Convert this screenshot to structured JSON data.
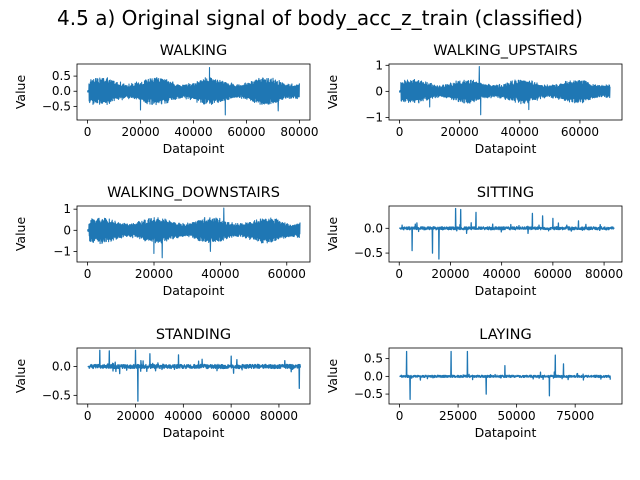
{
  "figure": {
    "title": "4.5 a) Original signal of body_acc_z_train (classified)"
  },
  "chart_data": [
    {
      "type": "line",
      "title": "WALKING",
      "xlabel": "Datapoint",
      "ylabel": "Value",
      "xlim": [
        -4000,
        84000
      ],
      "ylim": [
        -0.95,
        0.9
      ],
      "xticks": [
        0,
        20000,
        40000,
        60000,
        80000
      ],
      "yticks": [
        -0.5,
        0.0,
        0.5
      ],
      "yticklabels": [
        "−0.5",
        "0.0",
        "0.5"
      ],
      "n_points": 80000,
      "color": "#1f77b4",
      "series": [
        {
          "x_start": 0,
          "x_end": 80000,
          "typical_range": [
            -0.45,
            0.45
          ],
          "min": -0.78,
          "max": 0.78,
          "spikes": [
            [
              46000,
              0.78
            ],
            [
              52000,
              -0.78
            ],
            [
              20000,
              -0.62
            ],
            [
              72000,
              -0.65
            ]
          ]
        }
      ]
    },
    {
      "type": "line",
      "title": "WALKING_UPSTAIRS",
      "xlabel": "Datapoint",
      "ylabel": "Value",
      "xlim": [
        -3500,
        74000
      ],
      "ylim": [
        -1.1,
        1.05
      ],
      "xticks": [
        0,
        20000,
        40000,
        60000
      ],
      "yticks": [
        -1,
        0,
        1
      ],
      "yticklabels": [
        "−1",
        "0",
        "1"
      ],
      "n_points": 70000,
      "color": "#1f77b4",
      "series": [
        {
          "x_start": 0,
          "x_end": 70000,
          "typical_range": [
            -0.45,
            0.45
          ],
          "min": -0.95,
          "max": 0.95,
          "spikes": [
            [
              26500,
              0.95
            ],
            [
              27000,
              -0.9
            ],
            [
              43000,
              -0.7
            ],
            [
              10000,
              -0.6
            ]
          ]
        }
      ]
    },
    {
      "type": "line",
      "title": "WALKING_DOWNSTAIRS",
      "xlabel": "Datapoint",
      "ylabel": "Value",
      "xlim": [
        -3200,
        67000
      ],
      "ylim": [
        -1.5,
        1.15
      ],
      "xticks": [
        0,
        20000,
        40000,
        60000
      ],
      "yticks": [
        -1,
        0,
        1
      ],
      "yticklabels": [
        "−1",
        "0",
        "1"
      ],
      "n_points": 64000,
      "color": "#1f77b4",
      "series": [
        {
          "x_start": 0,
          "x_end": 64000,
          "typical_range": [
            -0.6,
            0.6
          ],
          "min": -1.3,
          "max": 1.05,
          "spikes": [
            [
              41000,
              1.05
            ],
            [
              22500,
              -1.3
            ],
            [
              20000,
              -1.1
            ],
            [
              37000,
              -1.0
            ]
          ]
        }
      ]
    },
    {
      "type": "line",
      "title": "SITTING",
      "xlabel": "Datapoint",
      "ylabel": "Value",
      "xlim": [
        -4000,
        87000
      ],
      "ylim": [
        -0.68,
        0.45
      ],
      "xticks": [
        0,
        20000,
        40000,
        60000,
        80000
      ],
      "yticks": [
        -0.5,
        0.0
      ],
      "yticklabels": [
        "−0.5",
        "0.0"
      ],
      "n_points": 84000,
      "color": "#1f77b4",
      "series": [
        {
          "x_start": 0,
          "x_end": 84000,
          "typical_range": [
            -0.05,
            0.05
          ],
          "min": -0.62,
          "max": 0.4,
          "spikes": [
            [
              15500,
              -0.62
            ],
            [
              13000,
              -0.5
            ],
            [
              5000,
              -0.45
            ],
            [
              22000,
              0.4
            ],
            [
              24000,
              0.38
            ],
            [
              30000,
              0.32
            ],
            [
              52000,
              0.3
            ],
            [
              56000,
              0.25
            ],
            [
              60000,
              0.2
            ],
            [
              70000,
              0.15
            ]
          ]
        }
      ]
    },
    {
      "type": "line",
      "title": "STANDING",
      "xlabel": "Datapoint",
      "ylabel": "Value",
      "xlim": [
        -4500,
        93000
      ],
      "ylim": [
        -0.65,
        0.32
      ],
      "xticks": [
        0,
        20000,
        40000,
        60000,
        80000
      ],
      "yticks": [
        -0.5,
        0.0
      ],
      "yticklabels": [
        "−0.5",
        "0.0"
      ],
      "n_points": 89000,
      "color": "#1f77b4",
      "series": [
        {
          "x_start": 0,
          "x_end": 89000,
          "typical_range": [
            -0.06,
            0.06
          ],
          "min": -0.6,
          "max": 0.28,
          "spikes": [
            [
              21000,
              -0.6
            ],
            [
              88500,
              -0.38
            ],
            [
              5000,
              0.28
            ],
            [
              9000,
              0.27
            ],
            [
              20000,
              0.28
            ],
            [
              26000,
              0.22
            ],
            [
              38000,
              0.2
            ],
            [
              60000,
              0.18
            ]
          ]
        }
      ]
    },
    {
      "type": "line",
      "title": "LAYING",
      "xlabel": "Datapoint",
      "ylabel": "Value",
      "xlim": [
        -4500,
        95000
      ],
      "ylim": [
        -0.78,
        0.8
      ],
      "xticks": [
        0,
        25000,
        50000,
        75000
      ],
      "yticks": [
        -0.5,
        0.0,
        0.5
      ],
      "yticklabels": [
        "−0.5",
        "0.0",
        "0.5"
      ],
      "n_points": 90000,
      "color": "#1f77b4",
      "series": [
        {
          "x_start": 0,
          "x_end": 90000,
          "typical_range": [
            -0.05,
            0.05
          ],
          "min": -0.7,
          "max": 0.7,
          "spikes": [
            [
              3000,
              0.7
            ],
            [
              4500,
              -0.65
            ],
            [
              22000,
              0.7
            ],
            [
              29000,
              0.7
            ],
            [
              37000,
              -0.5
            ],
            [
              64000,
              -0.55
            ],
            [
              66500,
              0.6
            ],
            [
              70000,
              0.35
            ],
            [
              45000,
              0.3
            ]
          ]
        }
      ]
    }
  ]
}
